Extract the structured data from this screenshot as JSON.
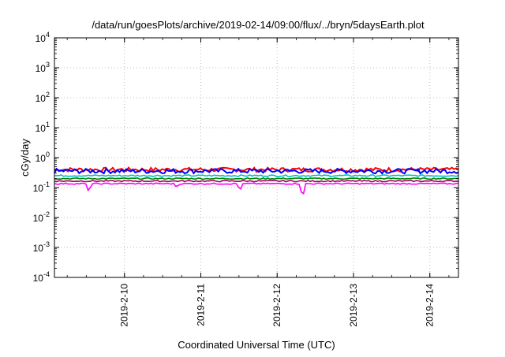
{
  "chart_data": {
    "type": "line",
    "title": "/data/run/goesPlots/archive/2019-02-14/09:00/flux/../bryn/5daysEarth.plot",
    "xlabel": "Coordinated Universal Time (UTC)",
    "ylabel": "cGy/day",
    "yscale": "log",
    "ylim_exponents": [
      -4,
      4
    ],
    "xlim_days": [
      "2019-02-09T02:00",
      "2019-02-14T09:00"
    ],
    "xticks": [
      "2019-2-10",
      "2019-2-11",
      "2019-2-12",
      "2019-2-13",
      "2019-2-14"
    ],
    "xtick_days": [
      0.917,
      1.917,
      2.917,
      3.917,
      4.917
    ],
    "yticks": [
      {
        "base": "10",
        "exp": "-4",
        "value": 0.0001
      },
      {
        "base": "10",
        "exp": "-3",
        "value": 0.001
      },
      {
        "base": "10",
        "exp": "-2",
        "value": 0.01
      },
      {
        "base": "10",
        "exp": "-1",
        "value": 0.1
      },
      {
        "base": "10",
        "exp": "0",
        "value": 1
      },
      {
        "base": "10",
        "exp": "1",
        "value": 10
      },
      {
        "base": "10",
        "exp": "2",
        "value": 100
      },
      {
        "base": "10",
        "exp": "3",
        "value": 1000
      },
      {
        "base": "10",
        "exp": "4",
        "value": 10000
      }
    ],
    "grid": true,
    "series": [
      {
        "color": "#ff0000",
        "level": 0.4,
        "noise": 0.16
      },
      {
        "color": "#0000ff",
        "level": 0.36,
        "noise": 0.18
      },
      {
        "color": "#00c0c0",
        "level": 0.25,
        "noise": 0.06
      },
      {
        "color": "#008800",
        "level": 0.2,
        "noise": 0.05
      },
      {
        "color": "#a00060",
        "level": 0.165,
        "noise": 0.05
      },
      {
        "color": "#ff00ff",
        "level": 0.135,
        "noise": 0.05,
        "dips": [
          {
            "day": 0.45,
            "value": 0.065
          },
          {
            "day": 1.6,
            "value": 0.1
          },
          {
            "day": 2.43,
            "value": 0.075
          },
          {
            "day": 3.25,
            "value": 0.027
          }
        ]
      }
    ]
  }
}
